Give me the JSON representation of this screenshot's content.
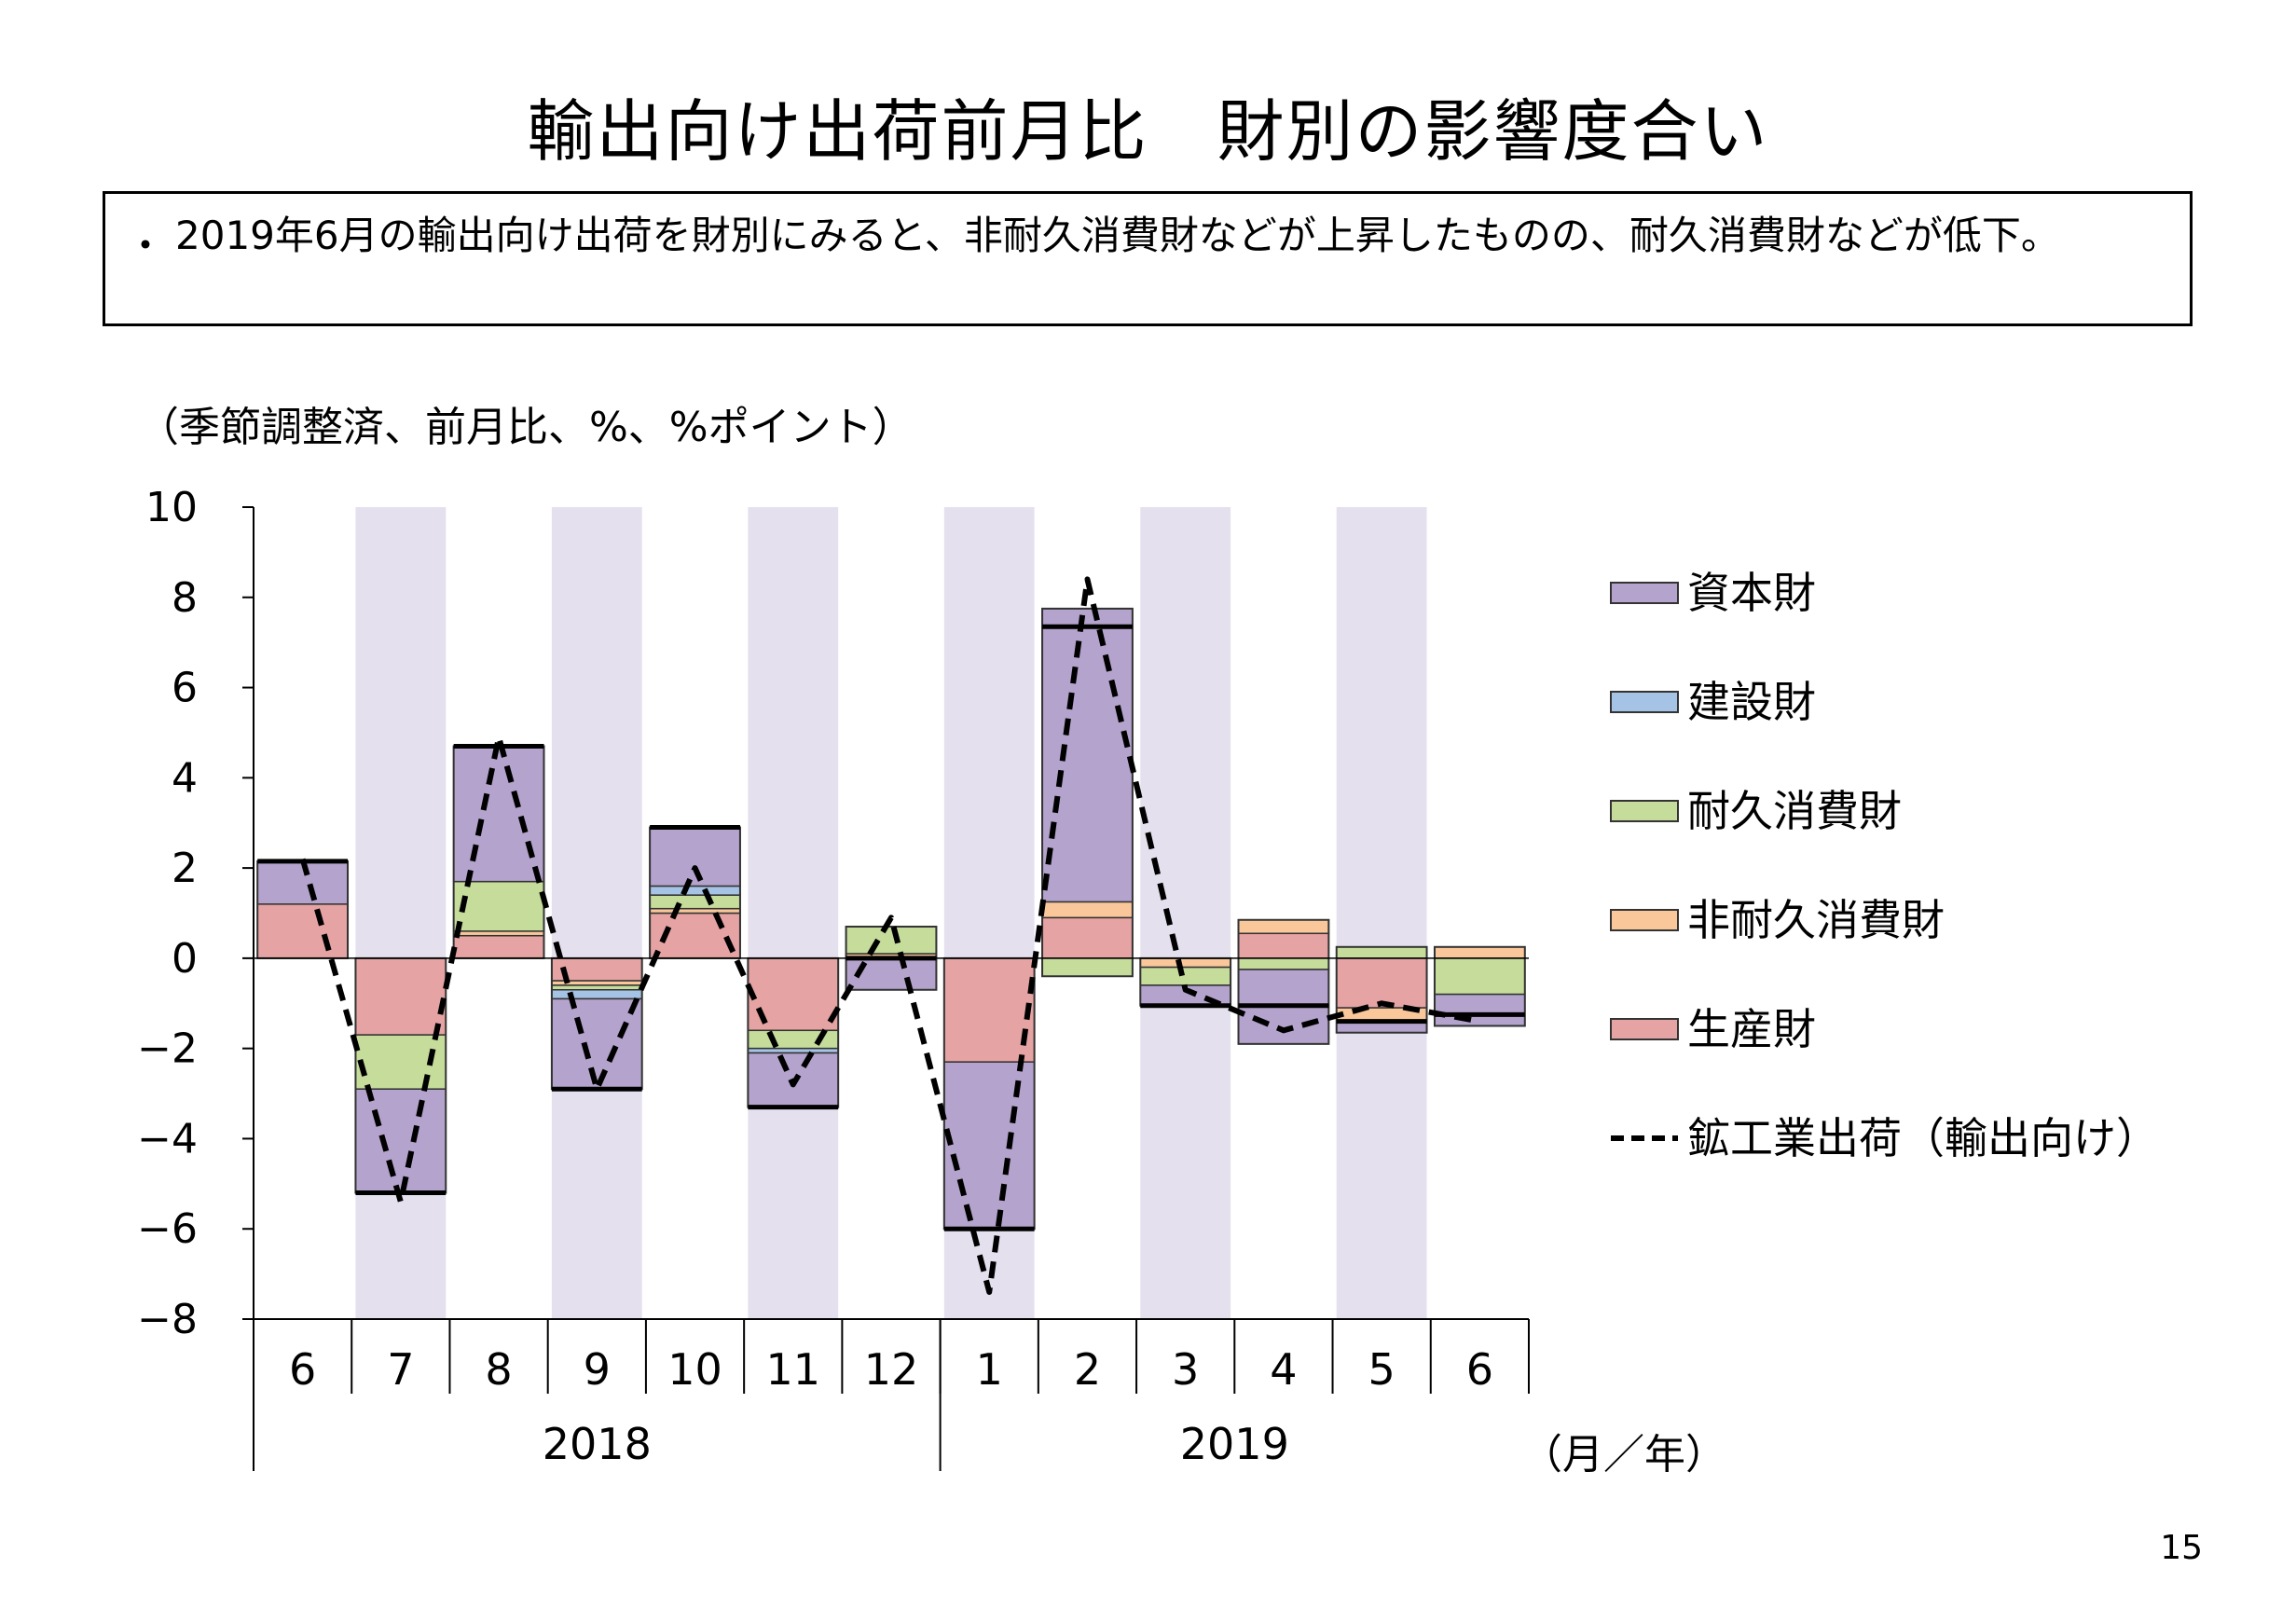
{
  "title": "輸出向け出荷前月比　財別の影響度合い",
  "summary": {
    "bullet": "・",
    "text": "2019年6月の輸出向け出荷を財別にみると、非耐久消費財などが上昇したものの、耐久消費財などが低下。"
  },
  "unit_label": "（季節調整済、前月比、%、%ポイント）",
  "page_number": "15",
  "chart_data": {
    "type": "bar",
    "stacked": true,
    "categories": [
      "6",
      "7",
      "8",
      "9",
      "10",
      "11",
      "12",
      "1",
      "2",
      "3",
      "4",
      "5",
      "6"
    ],
    "year_groups": [
      {
        "label": "2018",
        "from": 0,
        "to": 6
      },
      {
        "label": "2019",
        "from": 7,
        "to": 12
      }
    ],
    "x_unit_label": "（月／年）",
    "ylim": [
      -8,
      10
    ],
    "yticks": [
      10,
      8,
      6,
      4,
      2,
      0,
      -2,
      -4,
      -6,
      -8
    ],
    "shaded_months": [
      1,
      3,
      5,
      7,
      9,
      11
    ],
    "shade_color": "#e4e0ee",
    "series": [
      {
        "name": "生産財",
        "color": "#e6a3a3",
        "values": [
          1.2,
          -1.7,
          0.5,
          -0.5,
          1.0,
          -1.6,
          0.0,
          -2.3,
          0.9,
          0.0,
          0.55,
          -1.1,
          0.0
        ]
      },
      {
        "name": "非耐久消費財",
        "color": "#f9c79a",
        "values": [
          0.0,
          0.0,
          0.1,
          -0.1,
          0.1,
          0.0,
          0.1,
          0.0,
          0.35,
          -0.2,
          0.3,
          -0.3,
          0.25
        ]
      },
      {
        "name": "耐久消費財",
        "color": "#c5dc9b",
        "values": [
          0.0,
          -1.2,
          1.1,
          -0.1,
          0.3,
          -0.4,
          0.6,
          0.0,
          -0.4,
          -0.4,
          -0.25,
          0.25,
          -0.8
        ]
      },
      {
        "name": "建設財",
        "color": "#a5c3e4",
        "values": [
          0.0,
          0.0,
          0.0,
          -0.2,
          0.2,
          -0.1,
          0.0,
          0.0,
          0.0,
          0.0,
          0.0,
          0.0,
          0.0
        ]
      },
      {
        "name": "資本財",
        "color": "#b4a3cc",
        "values": [
          0.95,
          -2.3,
          3.0,
          -2.0,
          1.3,
          -1.2,
          -0.7,
          -3.7,
          6.5,
          -0.45,
          -1.65,
          -0.25,
          -0.7
        ]
      }
    ],
    "line": {
      "name": "鉱工業出荷（輸出向け）",
      "values": [
        2.2,
        -5.4,
        4.9,
        -2.9,
        2.0,
        -2.8,
        0.9,
        -7.4,
        8.4,
        -0.7,
        -1.6,
        -1.0,
        -1.4
      ]
    },
    "legend": {
      "position": "right",
      "items": [
        {
          "name": "資本財",
          "color": "#b4a3cc"
        },
        {
          "name": "建設財",
          "color": "#a5c3e4"
        },
        {
          "name": "耐久消費財",
          "color": "#c5dc9b"
        },
        {
          "name": "非耐久消費財",
          "color": "#f9c79a"
        },
        {
          "name": "生産財",
          "color": "#e6a3a3"
        },
        {
          "name": "鉱工業出荷（輸出向け）",
          "style": "dashed-line"
        }
      ]
    },
    "total_marker": "bold black tick at net sum within each bar"
  }
}
